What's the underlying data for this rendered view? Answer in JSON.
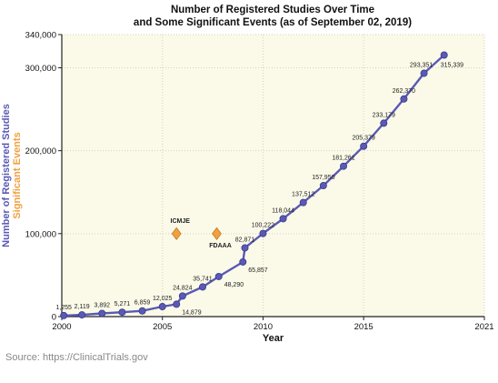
{
  "chart_data": {
    "type": "line",
    "title_lines": [
      "Number of Registered Studies Over Time",
      "and Some Significant Events (as of September 02, 2019)"
    ],
    "xlabel": "Year",
    "ylabel_lines": [
      {
        "text": "Number of Registered Studies",
        "color": "#5a5ab4"
      },
      {
        "text": "Significant Events",
        "color": "#f0a040"
      }
    ],
    "xlim": [
      2000,
      2021
    ],
    "ylim": [
      0,
      340000
    ],
    "x_ticks": [
      2000,
      2005,
      2010,
      2015,
      2021
    ],
    "y_ticks": [
      0,
      100000,
      200000,
      300000,
      340000
    ],
    "y_tick_labels": [
      "0",
      "100,000",
      "200,000",
      "300,000",
      "340,000"
    ],
    "grid": true,
    "series": [
      {
        "color": "#5a5ab4",
        "points": [
          {
            "x": 2000.1,
            "y": 1255,
            "label": "1,255"
          },
          {
            "x": 2001.0,
            "y": 2119,
            "label": "2,119"
          },
          {
            "x": 2002.0,
            "y": 3892,
            "label": "3,892"
          },
          {
            "x": 2003.0,
            "y": 5271,
            "label": "5,271"
          },
          {
            "x": 2004.0,
            "y": 6859,
            "label": "6,859"
          },
          {
            "x": 2005.0,
            "y": 12025,
            "label": "12,025"
          },
          {
            "x": 2005.7,
            "y": 14879,
            "label": "14,879"
          },
          {
            "x": 2006.0,
            "y": 24824,
            "label": "24,824"
          },
          {
            "x": 2007.0,
            "y": 35741,
            "label": "35,741"
          },
          {
            "x": 2007.8,
            "y": 48290,
            "label": "48,290"
          },
          {
            "x": 2009.0,
            "y": 65857,
            "label": "65,857"
          },
          {
            "x": 2009.1,
            "y": 82871,
            "label": "82,871"
          },
          {
            "x": 2010.0,
            "y": 100222,
            "label": "100,222"
          },
          {
            "x": 2011.0,
            "y": 118044,
            "label": "118,044"
          },
          {
            "x": 2012.0,
            "y": 137512,
            "label": "137,512"
          },
          {
            "x": 2013.0,
            "y": 157950,
            "label": "157,950"
          },
          {
            "x": 2014.0,
            "y": 181261,
            "label": "181,261"
          },
          {
            "x": 2015.0,
            "y": 205379,
            "label": "205,379"
          },
          {
            "x": 2016.0,
            "y": 233179,
            "label": "233,179"
          },
          {
            "x": 2017.0,
            "y": 262370,
            "label": "262,370"
          },
          {
            "x": 2018.0,
            "y": 293351,
            "label": "293,351"
          },
          {
            "x": 2019.0,
            "y": 315339,
            "label": "315,339"
          }
        ]
      }
    ],
    "events": [
      {
        "name": "ICMJE",
        "x": 2005.7,
        "y": 100000,
        "color": "#f0a040"
      },
      {
        "name": "FDAAA",
        "x": 2007.7,
        "y": 100000,
        "color": "#f0a040"
      }
    ],
    "source": "Source: https://ClinicalTrials.gov"
  }
}
